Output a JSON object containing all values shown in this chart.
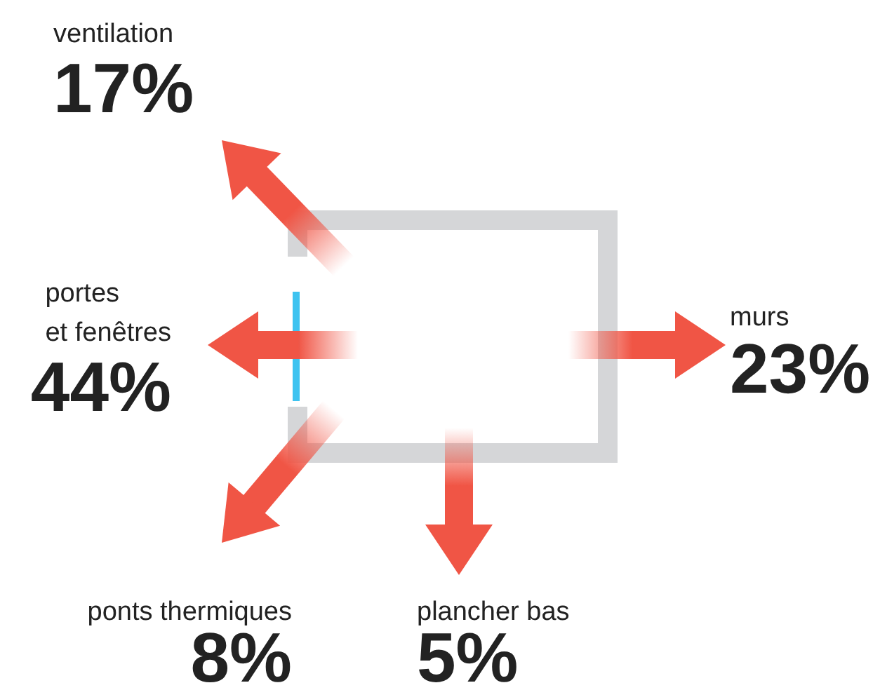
{
  "chart_data": {
    "type": "other",
    "categories": [
      "ventilation",
      "portes\net fenêtres",
      "murs",
      "ponts thermiques",
      "plancher bas"
    ],
    "values": [
      17,
      44,
      23,
      8,
      5
    ],
    "value_labels": [
      "17%",
      "44%",
      "23%",
      "8%",
      "5%"
    ]
  }
}
